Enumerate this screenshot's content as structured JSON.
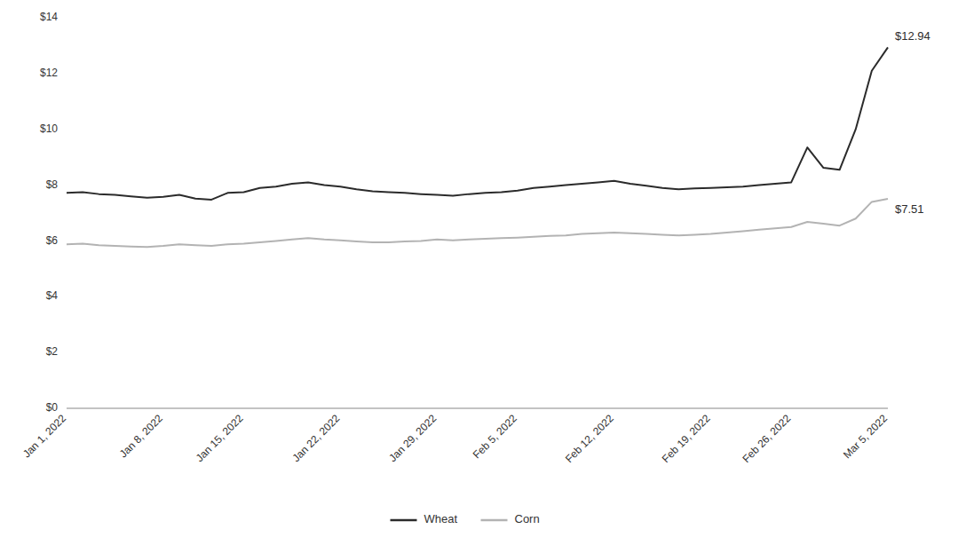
{
  "chart_data": {
    "type": "line",
    "categories": [
      "Jan 1, 2022",
      null,
      null,
      null,
      null,
      null,
      "Jan 8, 2022",
      null,
      null,
      null,
      null,
      "Jan 15, 2022",
      null,
      null,
      null,
      null,
      null,
      "Jan 22, 2022",
      null,
      null,
      null,
      null,
      null,
      "Jan 29, 2022",
      null,
      null,
      null,
      null,
      "Feb 5, 2022",
      null,
      null,
      null,
      null,
      null,
      "Feb 12, 2022",
      null,
      null,
      null,
      null,
      null,
      "Feb 19, 2022",
      null,
      null,
      null,
      null,
      "Feb 26, 2022",
      null,
      null,
      null,
      null,
      null,
      "Mar 5, 2022"
    ],
    "series": [
      {
        "name": "Wheat",
        "color": "#2b2b2b",
        "values": [
          7.72,
          7.75,
          7.68,
          7.65,
          7.6,
          7.55,
          7.58,
          7.65,
          7.52,
          7.48,
          7.72,
          7.75,
          7.9,
          7.95,
          8.05,
          8.1,
          8.0,
          7.95,
          7.85,
          7.78,
          7.75,
          7.72,
          7.68,
          7.65,
          7.62,
          7.68,
          7.72,
          7.75,
          7.8,
          7.9,
          7.95,
          8.0,
          8.05,
          8.1,
          8.15,
          8.05,
          7.98,
          7.9,
          7.85,
          7.88,
          7.9,
          7.92,
          7.95,
          8.0,
          8.05,
          8.1,
          9.35,
          8.62,
          8.55,
          10.0,
          12.1,
          12.94
        ]
      },
      {
        "name": "Corn",
        "color": "#b3b3b3",
        "values": [
          5.88,
          5.9,
          5.85,
          5.82,
          5.8,
          5.78,
          5.82,
          5.88,
          5.85,
          5.82,
          5.88,
          5.9,
          5.95,
          6.0,
          6.05,
          6.1,
          6.05,
          6.02,
          5.98,
          5.95,
          5.95,
          5.98,
          6.0,
          6.05,
          6.02,
          6.05,
          6.08,
          6.1,
          6.12,
          6.15,
          6.18,
          6.2,
          6.25,
          6.28,
          6.3,
          6.28,
          6.25,
          6.22,
          6.2,
          6.22,
          6.25,
          6.3,
          6.35,
          6.4,
          6.45,
          6.5,
          6.68,
          6.62,
          6.55,
          6.8,
          7.4,
          7.51
        ]
      }
    ],
    "annotations": [
      {
        "text": "$12.94",
        "value": 12.94
      },
      {
        "text": "$7.51",
        "value": 7.51
      }
    ],
    "ylim": [
      0,
      14
    ],
    "yticks": [
      {
        "value": 0,
        "label": "$0"
      },
      {
        "value": 2,
        "label": "$2"
      },
      {
        "value": 4,
        "label": "$4"
      },
      {
        "value": 6,
        "label": "$6"
      },
      {
        "value": 8,
        "label": "$8"
      },
      {
        "value": 10,
        "label": "$10"
      },
      {
        "value": 12,
        "label": "$12"
      },
      {
        "value": 14,
        "label": "$14"
      }
    ],
    "grid": false,
    "legend": "bottom"
  }
}
